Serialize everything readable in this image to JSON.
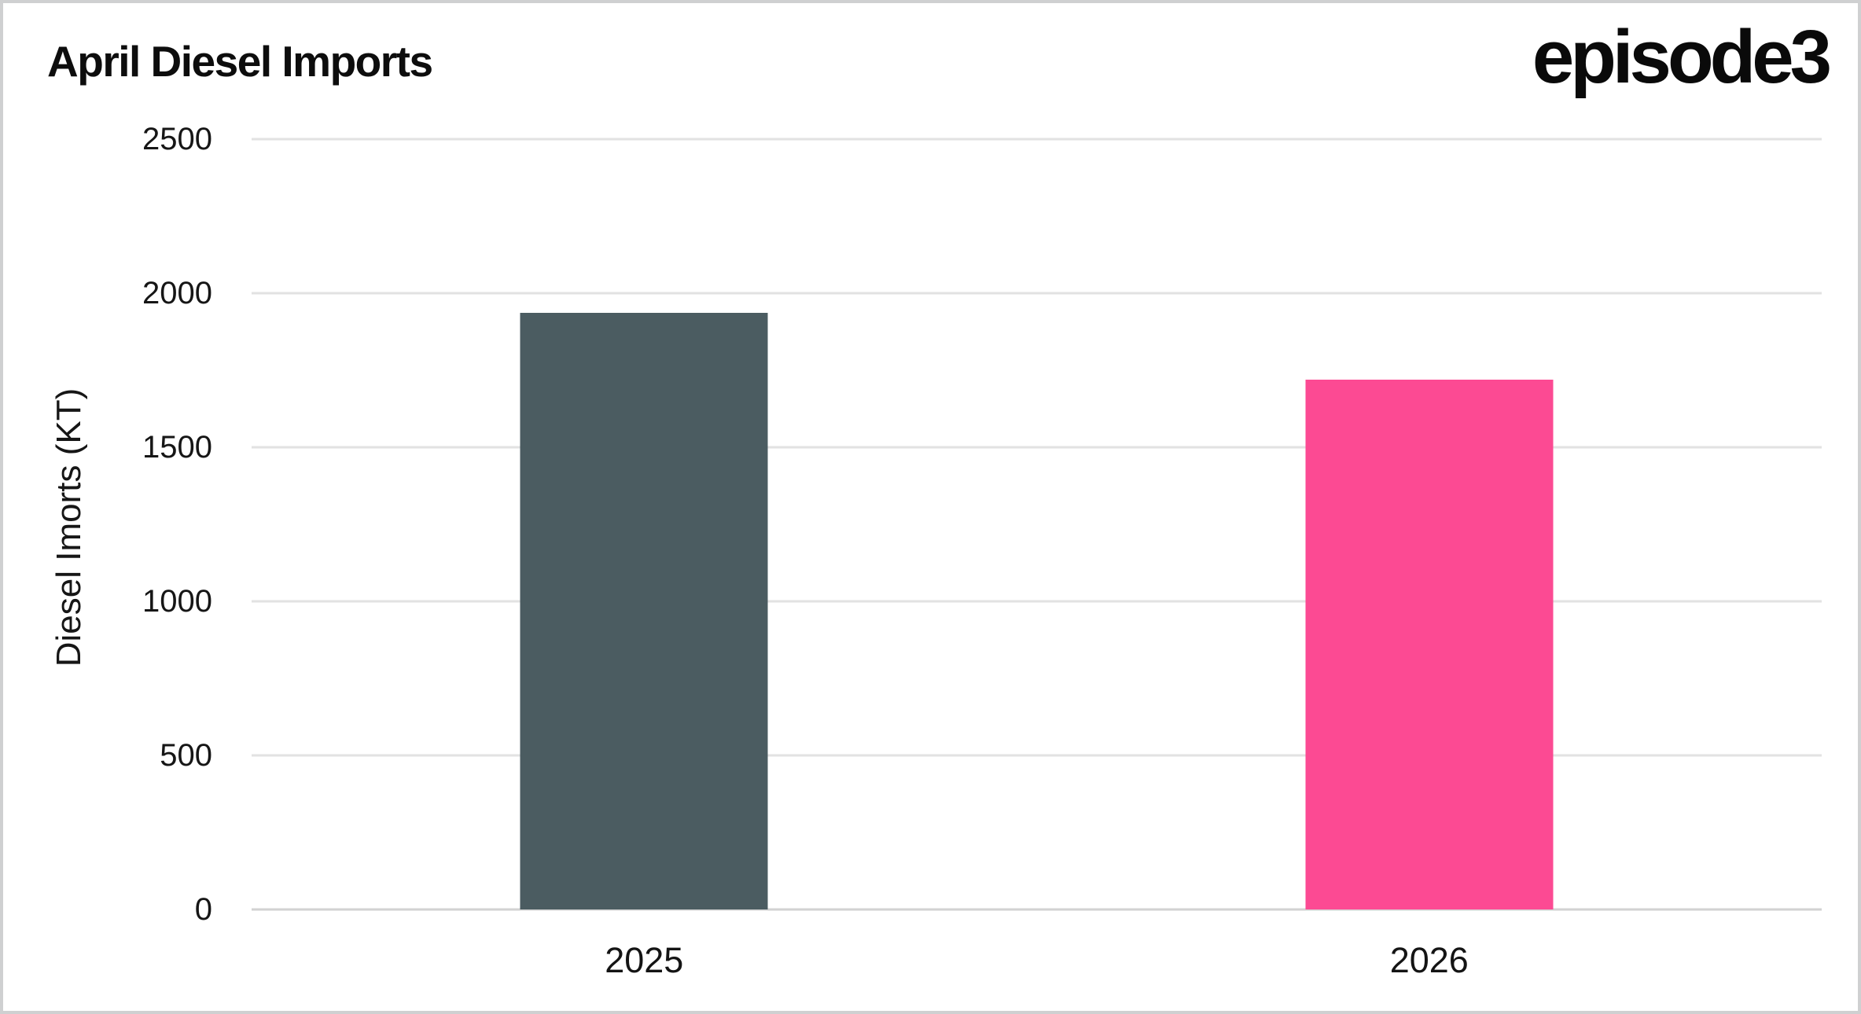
{
  "header": {
    "title": "April Diesel Imports",
    "logo": "episode3"
  },
  "chart_data": {
    "type": "bar",
    "title": "April Diesel Imports",
    "categories": [
      "2025",
      "2026"
    ],
    "values": [
      1935,
      1720
    ],
    "xlabel": "",
    "ylabel": "Diesel Imorts (KT)",
    "ylim": [
      0,
      2500
    ],
    "yticks": [
      0,
      500,
      1000,
      1500,
      2000,
      2500
    ],
    "grid": "horizontal-light-gray",
    "legend": "none",
    "bar_colors": [
      "#4b5c61",
      "#fc4a93"
    ],
    "colors": {
      "background": "#ffffff",
      "border": "#cfd0d1",
      "gridline": "#e2e2e2",
      "baseline": "#d2d2d2",
      "text": "#121212"
    }
  }
}
